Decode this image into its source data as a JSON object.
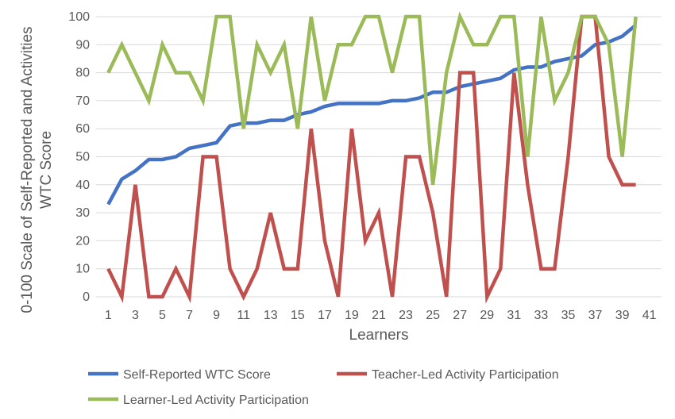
{
  "chart_data": {
    "type": "line",
    "title": "",
    "xlabel": "Learners",
    "ylabel_lines": [
      "0-100 Scale of Self-Reported and Activities",
      "WTC Score"
    ],
    "xlim": [
      1,
      41
    ],
    "ylim": [
      0,
      100
    ],
    "x_ticks": [
      "1",
      "3",
      "5",
      "7",
      "9",
      "11",
      "13",
      "15",
      "17",
      "19",
      "21",
      "23",
      "25",
      "27",
      "29",
      "31",
      "33",
      "35",
      "37",
      "39",
      "41"
    ],
    "y_ticks": [
      "0",
      "10",
      "20",
      "30",
      "40",
      "50",
      "60",
      "70",
      "80",
      "90",
      "100"
    ],
    "grid": "horizontal",
    "legend_position": "bottom",
    "x": [
      1,
      2,
      3,
      4,
      5,
      6,
      7,
      8,
      9,
      10,
      11,
      12,
      13,
      14,
      15,
      16,
      17,
      18,
      19,
      20,
      21,
      22,
      23,
      24,
      25,
      26,
      27,
      28,
      29,
      30,
      31,
      32,
      33,
      34,
      35,
      36,
      37,
      38,
      39,
      40
    ],
    "series": [
      {
        "name": "Self-Reported WTC Score",
        "color": "#4472C4",
        "values": [
          33,
          42,
          45,
          49,
          49,
          50,
          53,
          54,
          55,
          61,
          62,
          62,
          63,
          63,
          65,
          66,
          68,
          69,
          69,
          69,
          69,
          70,
          70,
          71,
          73,
          73,
          75,
          76,
          77,
          78,
          81,
          82,
          82,
          84,
          85,
          86,
          90,
          91,
          93,
          97
        ]
      },
      {
        "name": "Teacher-Led Activity Participation",
        "color": "#C0504D",
        "values": [
          10,
          0,
          40,
          0,
          0,
          10,
          0,
          50,
          50,
          10,
          0,
          10,
          30,
          10,
          10,
          60,
          20,
          0,
          60,
          20,
          30,
          0,
          50,
          50,
          30,
          0,
          80,
          80,
          0,
          10,
          80,
          40,
          10,
          10,
          50,
          100,
          100,
          50,
          40,
          40
        ]
      },
      {
        "name": "Learner-Led Activity Participation",
        "color": "#9BBB59",
        "values": [
          80,
          90,
          80,
          70,
          90,
          80,
          80,
          70,
          100,
          100,
          60,
          90,
          80,
          90,
          60,
          100,
          70,
          90,
          90,
          100,
          100,
          80,
          100,
          100,
          40,
          80,
          100,
          90,
          90,
          100,
          100,
          50,
          100,
          70,
          80,
          100,
          100,
          90,
          50,
          100
        ]
      }
    ]
  }
}
